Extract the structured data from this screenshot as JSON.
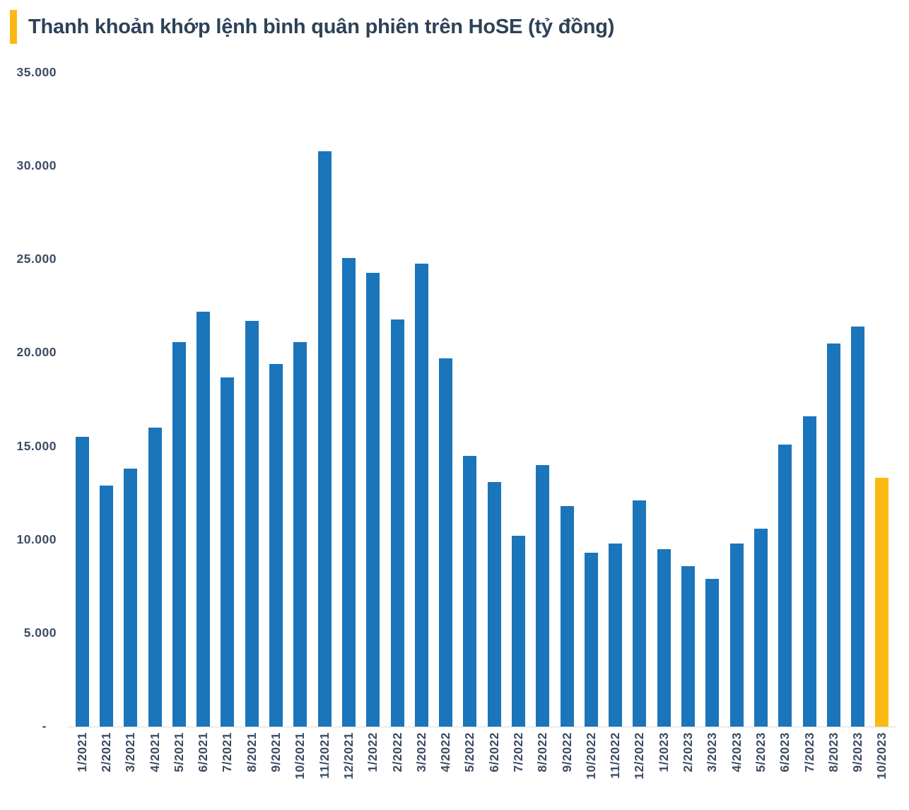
{
  "header": {
    "title": "Thanh khoản khớp lệnh bình quân phiên trên HoSE (tỷ đồng)"
  },
  "colors": {
    "accent": "#FDB913",
    "bar": "#1B75BB",
    "highlight_bar": "#FDB913",
    "title_text": "#2D4257",
    "axis_text": "#3D4D64",
    "baseline": "#D9D9D9"
  },
  "chart_data": {
    "type": "bar",
    "title": "Thanh khoản khớp lệnh bình quân phiên trên HoSE (tỷ đồng)",
    "unit": "tỷ đồng",
    "categories": [
      "1/2021",
      "2/2021",
      "3/2021",
      "4/2021",
      "5/2021",
      "6/2021",
      "7/2021",
      "8/2021",
      "9/2021",
      "10/2021",
      "11/2021",
      "12/2021",
      "1/2022",
      "2/2022",
      "3/2022",
      "4/2022",
      "5/2022",
      "6/2022",
      "7/2022",
      "8/2022",
      "9/2022",
      "10/2022",
      "11/2022",
      "12/2022",
      "1/2023",
      "2/2023",
      "3/2023",
      "4/2023",
      "5/2023",
      "6/2023",
      "7/2023",
      "8/2023",
      "9/2023",
      "10/2023"
    ],
    "values": [
      15500,
      12900,
      13800,
      16000,
      20600,
      22200,
      18700,
      21700,
      19400,
      20600,
      30800,
      25100,
      24300,
      21800,
      24800,
      19700,
      14500,
      13100,
      10200,
      14000,
      11800,
      9300,
      9800,
      12100,
      9500,
      8600,
      7900,
      9800,
      10600,
      15100,
      16600,
      20500,
      21400,
      13300
    ],
    "highlight_category": "10/2023",
    "ylim": [
      0,
      35000
    ],
    "y_ticks": [
      {
        "label": "35.000",
        "value": 35000
      },
      {
        "label": "30.000",
        "value": 30000
      },
      {
        "label": "25.000",
        "value": 25000
      },
      {
        "label": "20.000",
        "value": 20000
      },
      {
        "label": "15.000",
        "value": 15000
      },
      {
        "label": "10.000",
        "value": 10000
      },
      {
        "label": "5.000",
        "value": 5000
      },
      {
        "label": "-",
        "value": 0
      }
    ],
    "grid": false,
    "legend": "none",
    "x_label_rotation": "vertical-bottom-to-top"
  }
}
